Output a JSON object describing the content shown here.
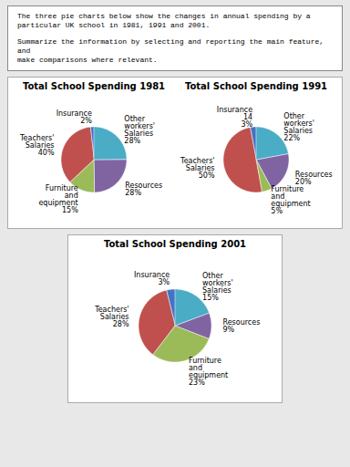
{
  "annotations": [
    "The three pie charts below show the changes in annual spending by a\nparticular UK school in 1981, 1991 and 2001.",
    "Summarize the information by selecting and reporting the main feature, and\nmake comparisons where relevant."
  ],
  "chart_data": [
    {
      "type": "pie",
      "title": "Total School Spending 1981",
      "categories": [
        "Insurance\n2%",
        "Teachers'\nSalaries\n40%",
        "Furniture\nand\nequipment\n15%",
        "Resources\n28%",
        "Other\nworkers'\nSalaries\n28%"
      ],
      "values": [
        2,
        40,
        15,
        28,
        28
      ],
      "colors": [
        "#4472C4",
        "#C0504D",
        "#9BBB59",
        "#8064A2",
        "#4BACC6"
      ]
    },
    {
      "type": "pie",
      "title": "Total School Spending 1991",
      "categories": [
        "Insurance\n14\n3%",
        "Teachers'\nSalaries\n50%",
        "Furniture\nand\nequipment\n5%",
        "Resources\n20%",
        "Other\nworkers'\nSalaries\n22%"
      ],
      "values": [
        3,
        50,
        5,
        20,
        22
      ],
      "colors": [
        "#4472C4",
        "#C0504D",
        "#9BBB59",
        "#8064A2",
        "#4BACC6"
      ]
    },
    {
      "type": "pie",
      "title": "Total School Spending 2001",
      "categories": [
        "Insurance\n3%",
        "Teachers'\nSalaries\n28%",
        "Furniture\nand\nequipment\n23%",
        "Resources\n9%",
        "Other\nworkers'\nSalaries\n15%"
      ],
      "values": [
        3,
        28,
        23,
        9,
        15
      ],
      "colors": [
        "#4472C4",
        "#C0504D",
        "#9BBB59",
        "#8064A2",
        "#4BACC6"
      ]
    }
  ]
}
